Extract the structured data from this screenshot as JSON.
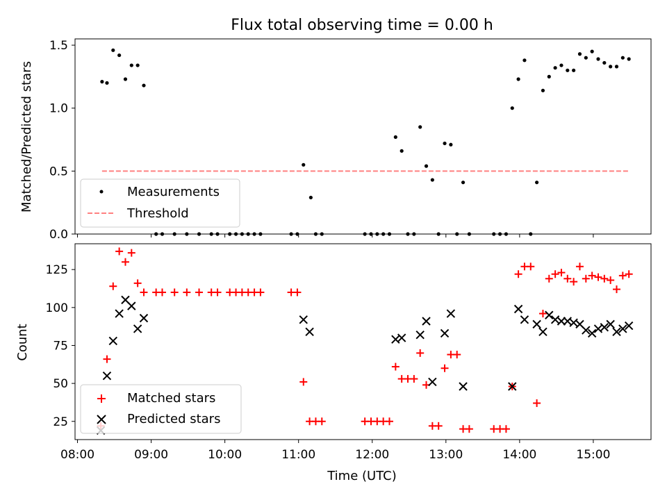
{
  "chart_data": [
    {
      "type": "scatter",
      "title": "Flux total observing time = 0.00 h",
      "xlabel": "",
      "ylabel": "Matched/Predicted stars",
      "xlim": [
        "07:58",
        "15:47"
      ],
      "ylim": [
        0,
        1.55
      ],
      "yticks": [
        0.0,
        0.5,
        1.0,
        1.5
      ],
      "ytick_labels": [
        "0.0",
        "0.5",
        "1.0",
        "1.5"
      ],
      "legend_position": "lower-left",
      "series": [
        {
          "name": "Measurements",
          "color": "#000000",
          "marker": "dot",
          "points": [
            [
              "08:20",
              1.21
            ],
            [
              "08:24",
              1.2
            ],
            [
              "08:29",
              1.46
            ],
            [
              "08:34",
              1.42
            ],
            [
              "08:39",
              1.23
            ],
            [
              "08:44",
              1.34
            ],
            [
              "08:49",
              1.34
            ],
            [
              "08:54",
              1.18
            ],
            [
              "09:04",
              0
            ],
            [
              "09:09",
              0
            ],
            [
              "09:19",
              0
            ],
            [
              "09:29",
              0
            ],
            [
              "09:39",
              0
            ],
            [
              "09:49",
              0
            ],
            [
              "09:54",
              0
            ],
            [
              "10:04",
              0
            ],
            [
              "10:09",
              0
            ],
            [
              "10:14",
              0
            ],
            [
              "10:19",
              0
            ],
            [
              "10:24",
              0
            ],
            [
              "10:29",
              0
            ],
            [
              "10:54",
              0
            ],
            [
              "10:59",
              0
            ],
            [
              "11:04",
              0.55
            ],
            [
              "11:10",
              0.29
            ],
            [
              "11:14",
              0
            ],
            [
              "11:19",
              0
            ],
            [
              "11:54",
              0
            ],
            [
              "11:59",
              0
            ],
            [
              "12:04",
              0
            ],
            [
              "12:09",
              0
            ],
            [
              "12:14",
              0
            ],
            [
              "12:19",
              0.77
            ],
            [
              "12:24",
              0.66
            ],
            [
              "12:29",
              0
            ],
            [
              "12:34",
              0
            ],
            [
              "12:39",
              0.85
            ],
            [
              "12:44",
              0.54
            ],
            [
              "12:49",
              0.43
            ],
            [
              "12:54",
              0
            ],
            [
              "12:59",
              0.72
            ],
            [
              "13:04",
              0.71
            ],
            [
              "13:09",
              0
            ],
            [
              "13:14",
              0.41
            ],
            [
              "13:19",
              0
            ],
            [
              "13:39",
              0
            ],
            [
              "13:44",
              0
            ],
            [
              "13:49",
              0
            ],
            [
              "13:54",
              1.0
            ],
            [
              "13:59",
              1.23
            ],
            [
              "14:04",
              1.38
            ],
            [
              "14:09",
              0
            ],
            [
              "14:14",
              0.41
            ],
            [
              "14:19",
              1.14
            ],
            [
              "14:24",
              1.25
            ],
            [
              "14:29",
              1.32
            ],
            [
              "14:34",
              1.34
            ],
            [
              "14:39",
              1.3
            ],
            [
              "14:44",
              1.3
            ],
            [
              "14:49",
              1.43
            ],
            [
              "14:54",
              1.4
            ],
            [
              "14:59",
              1.45
            ],
            [
              "15:04",
              1.39
            ],
            [
              "15:09",
              1.36
            ],
            [
              "15:14",
              1.33
            ],
            [
              "15:19",
              1.33
            ],
            [
              "15:24",
              1.4
            ],
            [
              "15:29",
              1.39
            ]
          ]
        },
        {
          "name": "Threshold",
          "color": "#ff8080",
          "style": "dashed",
          "points": [
            [
              "08:20",
              0.5
            ],
            [
              "15:29",
              0.5
            ]
          ]
        }
      ]
    },
    {
      "type": "scatter",
      "title": "",
      "xlabel": "Time (UTC)",
      "ylabel": "Count",
      "xlim": [
        "07:58",
        "15:47"
      ],
      "ylim": [
        13,
        142
      ],
      "yticks": [
        25,
        50,
        75,
        100,
        125
      ],
      "ytick_labels": [
        "25",
        "50",
        "75",
        "100",
        "125"
      ],
      "xticks": [
        "08:00",
        "09:00",
        "10:00",
        "11:00",
        "12:00",
        "13:00",
        "14:00",
        "15:00"
      ],
      "legend_position": "lower-left",
      "series": [
        {
          "name": "Matched stars",
          "color": "#ff0000",
          "marker": "plus",
          "points": [
            [
              "08:19",
              22
            ],
            [
              "08:24",
              66
            ],
            [
              "08:29",
              114
            ],
            [
              "08:34",
              137
            ],
            [
              "08:39",
              130
            ],
            [
              "08:44",
              136
            ],
            [
              "08:49",
              116
            ],
            [
              "08:54",
              110
            ],
            [
              "09:04",
              110
            ],
            [
              "09:09",
              110
            ],
            [
              "09:19",
              110
            ],
            [
              "09:29",
              110
            ],
            [
              "09:39",
              110
            ],
            [
              "09:49",
              110
            ],
            [
              "09:54",
              110
            ],
            [
              "10:04",
              110
            ],
            [
              "10:09",
              110
            ],
            [
              "10:14",
              110
            ],
            [
              "10:19",
              110
            ],
            [
              "10:24",
              110
            ],
            [
              "10:29",
              110
            ],
            [
              "10:54",
              110
            ],
            [
              "10:59",
              110
            ],
            [
              "11:04",
              51
            ],
            [
              "11:09",
              25
            ],
            [
              "11:14",
              25
            ],
            [
              "11:19",
              25
            ],
            [
              "11:54",
              25
            ],
            [
              "11:59",
              25
            ],
            [
              "12:04",
              25
            ],
            [
              "12:09",
              25
            ],
            [
              "12:14",
              25
            ],
            [
              "12:19",
              61
            ],
            [
              "12:24",
              53
            ],
            [
              "12:29",
              53
            ],
            [
              "12:34",
              53
            ],
            [
              "12:39",
              70
            ],
            [
              "12:44",
              49
            ],
            [
              "12:49",
              22
            ],
            [
              "12:54",
              22
            ],
            [
              "12:59",
              60
            ],
            [
              "13:04",
              69
            ],
            [
              "13:09",
              69
            ],
            [
              "13:14",
              20
            ],
            [
              "13:19",
              20
            ],
            [
              "13:39",
              20
            ],
            [
              "13:44",
              20
            ],
            [
              "13:49",
              20
            ],
            [
              "13:54",
              48
            ],
            [
              "13:59",
              122
            ],
            [
              "14:04",
              127
            ],
            [
              "14:09",
              127
            ],
            [
              "14:14",
              37
            ],
            [
              "14:19",
              96
            ],
            [
              "14:24",
              119
            ],
            [
              "14:29",
              122
            ],
            [
              "14:34",
              123
            ],
            [
              "14:39",
              119
            ],
            [
              "14:44",
              117
            ],
            [
              "14:49",
              127
            ],
            [
              "14:54",
              119
            ],
            [
              "14:59",
              121
            ],
            [
              "15:04",
              120
            ],
            [
              "15:09",
              119
            ],
            [
              "15:14",
              118
            ],
            [
              "15:19",
              112
            ],
            [
              "15:24",
              121
            ],
            [
              "15:29",
              122
            ]
          ]
        },
        {
          "name": "Predicted stars",
          "color": "#000000",
          "marker": "x",
          "points": [
            [
              "08:19",
              19
            ],
            [
              "08:24",
              55
            ],
            [
              "08:29",
              78
            ],
            [
              "08:34",
              96
            ],
            [
              "08:39",
              105
            ],
            [
              "08:44",
              101
            ],
            [
              "08:49",
              86
            ],
            [
              "08:54",
              93
            ],
            [
              "11:04",
              92
            ],
            [
              "11:09",
              84
            ],
            [
              "12:19",
              79
            ],
            [
              "12:24",
              80
            ],
            [
              "12:39",
              82
            ],
            [
              "12:44",
              91
            ],
            [
              "12:49",
              51
            ],
            [
              "12:59",
              83
            ],
            [
              "13:04",
              96
            ],
            [
              "13:14",
              48
            ],
            [
              "13:54",
              48
            ],
            [
              "13:59",
              99
            ],
            [
              "14:04",
              92
            ],
            [
              "14:14",
              89
            ],
            [
              "14:19",
              84
            ],
            [
              "14:24",
              95
            ],
            [
              "14:29",
              92
            ],
            [
              "14:34",
              91
            ],
            [
              "14:39",
              91
            ],
            [
              "14:44",
              90
            ],
            [
              "14:49",
              89
            ],
            [
              "14:54",
              85
            ],
            [
              "14:59",
              83
            ],
            [
              "15:04",
              86
            ],
            [
              "15:09",
              87
            ],
            [
              "15:14",
              89
            ],
            [
              "15:19",
              84
            ],
            [
              "15:24",
              86
            ],
            [
              "15:29",
              88
            ]
          ]
        }
      ]
    }
  ]
}
